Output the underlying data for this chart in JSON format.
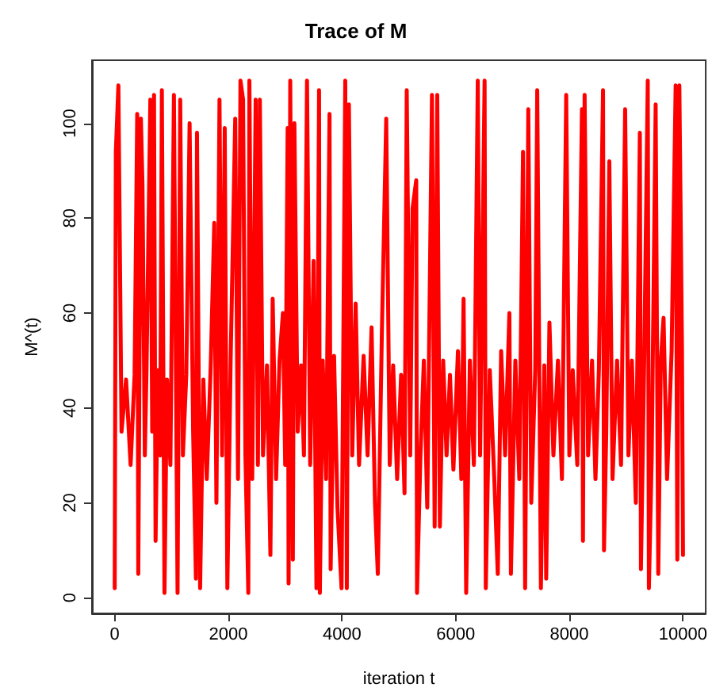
{
  "chart_data": {
    "type": "line",
    "title": "Trace of M",
    "xlabel": "iteration t",
    "ylabel": "M^(t)",
    "xlim": [
      -400,
      10400
    ],
    "ylim": [
      -3.3,
      113.3
    ],
    "xticks": [
      0,
      2000,
      4000,
      6000,
      8000,
      10000
    ],
    "yticks": [
      0,
      20,
      40,
      60,
      80,
      100
    ],
    "grid": false,
    "marker": "none",
    "line_style": "solid",
    "series": [
      {
        "color": "#ff0000",
        "x": [
          0,
          20,
          65,
          120,
          200,
          280,
          350,
          396,
          415,
          461,
          489,
          530,
          560,
          627,
          660,
          692,
          719,
          760,
          800,
          830,
          876,
          920,
          980,
          1042,
          1106,
          1153,
          1200,
          1260,
          1318,
          1380,
          1429,
          1448,
          1503,
          1560,
          1620,
          1690,
          1752,
          1790,
          1844,
          1890,
          1936,
          1982,
          2040,
          2121,
          2170,
          2213,
          2259,
          2300,
          2351,
          2370,
          2420,
          2480,
          2520,
          2554,
          2610,
          2680,
          2740,
          2780,
          2840,
          2900,
          2960,
          3000,
          3043,
          3060,
          3089,
          3135,
          3162,
          3220,
          3280,
          3330,
          3384,
          3440,
          3500,
          3550,
          3596,
          3610,
          3660,
          3720,
          3780,
          3800,
          3860,
          3920,
          3992,
          4057,
          4084,
          4121,
          4180,
          4240,
          4300,
          4380,
          4450,
          4520,
          4580,
          4630,
          4700,
          4778,
          4840,
          4900,
          4970,
          5040,
          5100,
          5139,
          5200,
          5241,
          5306,
          5320,
          5380,
          5440,
          5500,
          5583,
          5630,
          5676,
          5722,
          5780,
          5840,
          5900,
          5960,
          6040,
          6100,
          6139,
          6185,
          6250,
          6320,
          6389,
          6430,
          6509,
          6530,
          6600,
          6680,
          6741,
          6800,
          6870,
          6945,
          6972,
          7050,
          7120,
          7185,
          7222,
          7278,
          7330,
          7400,
          7435,
          7500,
          7560,
          7593,
          7650,
          7720,
          7800,
          7870,
          7945,
          8000,
          8060,
          8140,
          8222,
          8240,
          8269,
          8330,
          8400,
          8460,
          8520,
          8593,
          8610,
          8650,
          8704,
          8760,
          8840,
          8910,
          8982,
          9040,
          9100,
          9170,
          9241,
          9260,
          9320,
          9380,
          9400,
          9450,
          9519,
          9565,
          9610,
          9658,
          9720,
          9800,
          9871,
          9900,
          9936,
          9982,
          10000
        ],
        "values": [
          2,
          94,
          108,
          35,
          46,
          28,
          47,
          102,
          5,
          101,
          87,
          30,
          48,
          105,
          35,
          106,
          12,
          48,
          30,
          107,
          1,
          46,
          28,
          106,
          1,
          105,
          30,
          47,
          100,
          35,
          4,
          98,
          2,
          46,
          25,
          49,
          79,
          20,
          105,
          30,
          99,
          2,
          50,
          101,
          25,
          109,
          105,
          30,
          1,
          109,
          25,
          105,
          28,
          105,
          30,
          49,
          9,
          63,
          25,
          50,
          60,
          28,
          99,
          3,
          109,
          8,
          100,
          35,
          49,
          30,
          109,
          28,
          71,
          2,
          107,
          1,
          50,
          25,
          102,
          6,
          51,
          19,
          2,
          109,
          2,
          104,
          30,
          62,
          28,
          51,
          30,
          57,
          20,
          5,
          55,
          101,
          28,
          49,
          25,
          47,
          22,
          107,
          30,
          82,
          88,
          1,
          30,
          50,
          19,
          106,
          15,
          106,
          15,
          50,
          30,
          47,
          27,
          52,
          25,
          63,
          1,
          50,
          28,
          109,
          30,
          109,
          2,
          48,
          25,
          5,
          52,
          30,
          60,
          5,
          50,
          25,
          94,
          2,
          103,
          20,
          48,
          107,
          2,
          49,
          4,
          58,
          30,
          50,
          25,
          106,
          30,
          48,
          28,
          103,
          12,
          106,
          30,
          50,
          25,
          48,
          107,
          10,
          35,
          92,
          25,
          50,
          28,
          103,
          30,
          50,
          20,
          98,
          6,
          52,
          109,
          2,
          30,
          104,
          5,
          50,
          59,
          25,
          52,
          108,
          8,
          108,
          53,
          9
        ]
      }
    ]
  }
}
